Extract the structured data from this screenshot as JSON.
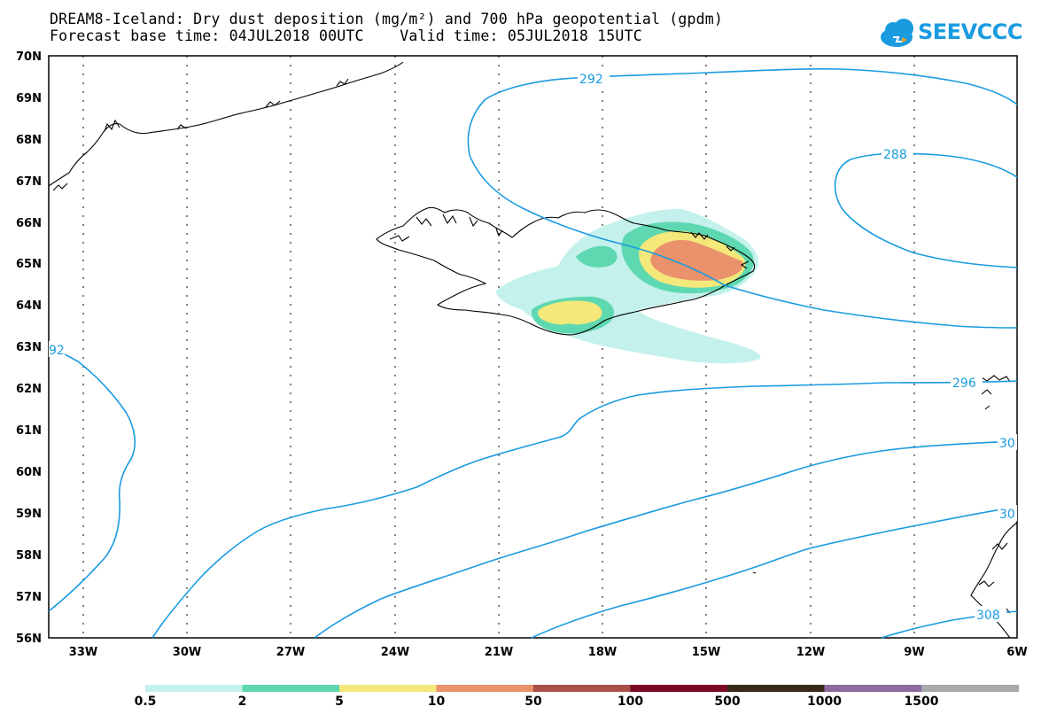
{
  "title_line1": "DREAM8-Iceland: Dry dust deposition (mg/m²) and 700 hPa geopotential (gpdm)",
  "title_line2": "Forecast base time: 04JUL2018 00UTC    Valid time: 05JUL2018 15UTC",
  "logo_text": "SEEVCCC",
  "lat_labels": [
    "70N",
    "69N",
    "68N",
    "67N",
    "66N",
    "65N",
    "64N",
    "63N",
    "62N",
    "61N",
    "60N",
    "59N",
    "58N",
    "57N",
    "56N"
  ],
  "lon_labels": [
    "33W",
    "30W",
    "27W",
    "24W",
    "21W",
    "18W",
    "15W",
    "12W",
    "9W",
    "6W"
  ],
  "contour_labels": [
    "292",
    "288",
    "92",
    "296",
    "30",
    "30",
    "308"
  ],
  "colorbar": {
    "labels": [
      "0.5",
      "2",
      "5",
      "10",
      "50",
      "100",
      "500",
      "1000",
      "1500"
    ],
    "colors": [
      "#c4f1ec",
      "#5ed8b0",
      "#f4e87a",
      "#e9926c",
      "#a9504a",
      "#7c0a26",
      "#3a2a1c",
      "#8e6aa0",
      "#a9a9a9"
    ]
  },
  "colors": {
    "contour": "#1a9be0",
    "coast": "#000000"
  }
}
